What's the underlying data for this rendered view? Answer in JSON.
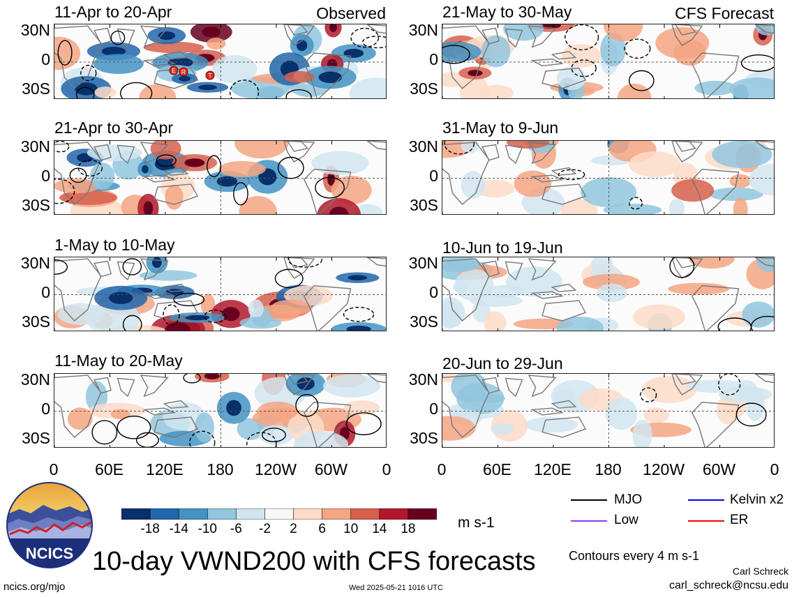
{
  "panels": [
    {
      "id": "obs1",
      "title": "11-Apr to 20-Apr",
      "column": "observed"
    },
    {
      "id": "obs2",
      "title": "21-Apr to 30-Apr",
      "column": "observed"
    },
    {
      "id": "obs3",
      "title": "1-May to 10-May",
      "column": "observed"
    },
    {
      "id": "obs4",
      "title": "11-May to 20-May",
      "column": "observed"
    },
    {
      "id": "fc1",
      "title": "21-May to 30-May",
      "column": "forecast"
    },
    {
      "id": "fc2",
      "title": "31-May to 9-Jun",
      "column": "forecast"
    },
    {
      "id": "fc3",
      "title": "10-Jun to 19-Jun",
      "column": "forecast"
    },
    {
      "id": "fc4",
      "title": "20-Jun to 29-Jun",
      "column": "forecast"
    }
  ],
  "labels": {
    "observed": "Observed",
    "forecast": "CFS Forecast"
  },
  "lat_ticks": [
    "30N",
    "0",
    "30S"
  ],
  "lon_ticks": [
    "0",
    "60E",
    "120E",
    "180",
    "120W",
    "60W",
    "0"
  ],
  "colorbar": {
    "ticks": [
      "-18",
      "-14",
      "-10",
      "-6",
      "-2",
      "2",
      "6",
      "10",
      "14",
      "18"
    ],
    "colors": [
      "#08306b",
      "#2166ac",
      "#4393c3",
      "#92c5de",
      "#d1e5f0",
      "#f7f7f7",
      "#fddbc7",
      "#f4a582",
      "#d6604d",
      "#b2182b",
      "#67001f"
    ],
    "units": "m s-1"
  },
  "legend": {
    "items": [
      {
        "label": "MJO",
        "color": "#000000"
      },
      {
        "label": "Kelvin x2",
        "color": "#0000ff"
      },
      {
        "label": "Low",
        "color": "#9933ff"
      },
      {
        "label": "ER",
        "color": "#ff0000"
      }
    ],
    "contour_note": "Contours every 4 m s-1"
  },
  "footer": {
    "title": "10-day VWND200 with CFS forecasts",
    "logo_text": "NCICS",
    "site": "ncics.org/mjo",
    "timestamp": "Wed 2025-05-21 1016 UTC",
    "author": "Carl Schreck",
    "email": "carl_schreck@ncsu.edu"
  },
  "storms": [
    {
      "label": "E"
    },
    {
      "label": "R"
    },
    {
      "label": "T"
    }
  ]
}
